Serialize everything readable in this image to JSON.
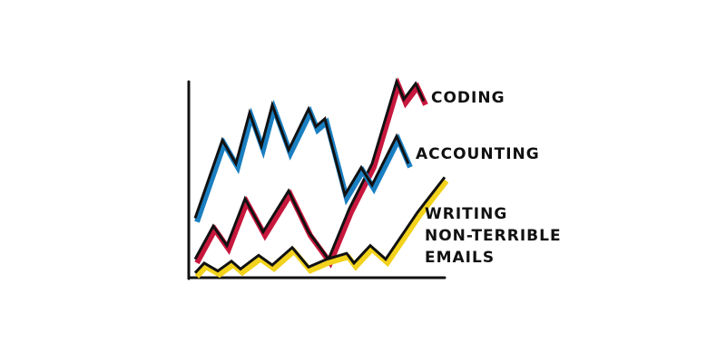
{
  "chart_data": {
    "type": "line",
    "xlim": [
      0,
      28
    ],
    "ylim": [
      0,
      100
    ],
    "series": [
      {
        "name": "CODING",
        "color": "#c8173d",
        "x": [
          0.5,
          2.5,
          4,
          6,
          8,
          10.8,
          13,
          15.2,
          17.5,
          20,
          22.7,
          23.5,
          24.8,
          25.7
        ],
        "values": [
          9,
          26,
          16,
          40,
          23,
          44,
          23,
          9,
          35,
          58,
          100,
          91,
          99,
          90
        ]
      },
      {
        "name": "ACCOUNTING",
        "color": "#1a7fc1",
        "x": [
          0.5,
          3.5,
          5,
          6.5,
          7.8,
          9,
          10.8,
          13,
          13.8,
          14.8,
          17,
          18.8,
          20,
          22.7,
          24
        ],
        "values": [
          30,
          70,
          58,
          84,
          67,
          88,
          65,
          86,
          77,
          81,
          42,
          56,
          47,
          72,
          58
        ]
      },
      {
        "name": "WRITING\nNON-TERRIBLE\nEMAILS",
        "color": "#f2d21b",
        "x": [
          0.5,
          1.5,
          3,
          4.5,
          5.5,
          7.5,
          9,
          11.2,
          13,
          15,
          17.2,
          18,
          19.8,
          21.5,
          25,
          28
        ],
        "values": [
          2,
          7,
          3,
          8,
          4,
          11,
          6,
          15,
          5,
          9,
          12,
          7,
          16,
          9,
          33,
          51
        ]
      }
    ]
  }
}
